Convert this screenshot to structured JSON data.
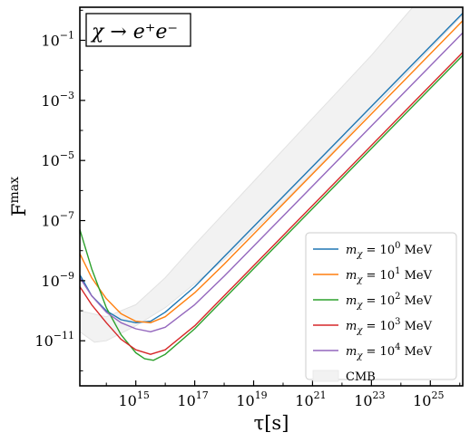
{
  "chart_data": {
    "type": "line",
    "title": "χ → e⁺e⁻",
    "xlabel": "τ[s]",
    "ylabel": "F_χ^max",
    "xscale": "log",
    "yscale": "log",
    "xlim_log10": [
      13.1,
      26.1
    ],
    "ylim_log10": [
      -12.5,
      0.1
    ],
    "x_ticks": [
      {
        "exp": 15,
        "label": "10^15"
      },
      {
        "exp": 17,
        "label": "10^17"
      },
      {
        "exp": 19,
        "label": "10^19"
      },
      {
        "exp": 21,
        "label": "10^21"
      },
      {
        "exp": 23,
        "label": "10^23"
      },
      {
        "exp": 25,
        "label": "10^25"
      }
    ],
    "y_ticks": [
      {
        "exp": -1,
        "label": "10^-1"
      },
      {
        "exp": -3,
        "label": "10^-3"
      },
      {
        "exp": -5,
        "label": "10^-5"
      },
      {
        "exp": -7,
        "label": "10^-7"
      },
      {
        "exp": -9,
        "label": "10^-9"
      },
      {
        "exp": -11,
        "label": "10^-11"
      }
    ],
    "legend_position": "lower-right",
    "series": [
      {
        "name": "m_χ = 10^0 MeV",
        "color": "#1f77b4",
        "points_log10": [
          [
            13.1,
            -8.8
          ],
          [
            13.5,
            -9.5
          ],
          [
            14.0,
            -10.0
          ],
          [
            14.5,
            -10.3
          ],
          [
            15.0,
            -10.4
          ],
          [
            15.5,
            -10.35
          ],
          [
            16.0,
            -10.05
          ],
          [
            17.0,
            -9.2
          ],
          [
            18.0,
            -8.2
          ],
          [
            20.0,
            -6.2
          ],
          [
            22.0,
            -4.2
          ],
          [
            24.0,
            -2.2
          ],
          [
            26.1,
            -0.1
          ]
        ]
      },
      {
        "name": "m_χ = 10^1 MeV",
        "color": "#ff7f0e",
        "points_log10": [
          [
            13.1,
            -8.1
          ],
          [
            13.5,
            -8.9
          ],
          [
            14.0,
            -9.6
          ],
          [
            14.5,
            -10.1
          ],
          [
            15.0,
            -10.35
          ],
          [
            15.5,
            -10.4
          ],
          [
            16.0,
            -10.2
          ],
          [
            17.0,
            -9.4
          ],
          [
            18.0,
            -8.45
          ],
          [
            20.0,
            -6.45
          ],
          [
            22.0,
            -4.45
          ],
          [
            24.0,
            -2.45
          ],
          [
            26.1,
            -0.35
          ]
        ]
      },
      {
        "name": "m_χ = 10^2 MeV",
        "color": "#2ca02c",
        "points_log10": [
          [
            13.1,
            -7.3
          ],
          [
            13.5,
            -8.6
          ],
          [
            14.0,
            -9.9
          ],
          [
            14.5,
            -10.8
          ],
          [
            15.0,
            -11.4
          ],
          [
            15.3,
            -11.6
          ],
          [
            15.6,
            -11.65
          ],
          [
            16.0,
            -11.45
          ],
          [
            17.0,
            -10.6
          ],
          [
            18.0,
            -9.6
          ],
          [
            20.0,
            -7.6
          ],
          [
            22.0,
            -5.6
          ],
          [
            24.0,
            -3.6
          ],
          [
            26.1,
            -1.5
          ]
        ]
      },
      {
        "name": "m_χ = 10^3 MeV",
        "color": "#d62728",
        "points_log10": [
          [
            13.1,
            -9.2
          ],
          [
            13.5,
            -9.8
          ],
          [
            14.0,
            -10.4
          ],
          [
            14.5,
            -10.95
          ],
          [
            15.0,
            -11.3
          ],
          [
            15.5,
            -11.45
          ],
          [
            16.0,
            -11.3
          ],
          [
            17.0,
            -10.5
          ],
          [
            18.0,
            -9.5
          ],
          [
            20.0,
            -7.5
          ],
          [
            22.0,
            -5.5
          ],
          [
            24.0,
            -3.5
          ],
          [
            26.1,
            -1.4
          ]
        ]
      },
      {
        "name": "m_χ = 10^4 MeV",
        "color": "#9467bd",
        "points_log10": [
          [
            13.1,
            -8.9
          ],
          [
            13.5,
            -9.5
          ],
          [
            14.0,
            -10.05
          ],
          [
            14.5,
            -10.4
          ],
          [
            15.0,
            -10.6
          ],
          [
            15.5,
            -10.7
          ],
          [
            16.0,
            -10.55
          ],
          [
            17.0,
            -9.8
          ],
          [
            18.0,
            -8.85
          ],
          [
            20.0,
            -6.85
          ],
          [
            22.0,
            -4.85
          ],
          [
            24.0,
            -2.85
          ],
          [
            26.1,
            -0.75
          ]
        ]
      }
    ],
    "band": {
      "name": "CMB",
      "color": "#f2f2f2",
      "upper_log10": [
        [
          13.1,
          -10.0
        ],
        [
          14.0,
          -10.2
        ],
        [
          15.0,
          -9.8
        ],
        [
          16.0,
          -8.9
        ],
        [
          17.0,
          -7.8
        ],
        [
          19.0,
          -5.7
        ],
        [
          21.0,
          -3.6
        ],
        [
          23.0,
          -1.5
        ],
        [
          24.4,
          0.1
        ]
      ],
      "lower_log10": [
        [
          24.4,
          0.1
        ],
        [
          26.1,
          0.1
        ],
        [
          26.1,
          -0.15
        ],
        [
          24.0,
          -2.3
        ],
        [
          22.0,
          -4.4
        ],
        [
          20.0,
          -6.4
        ],
        [
          18.0,
          -8.3
        ],
        [
          16.0,
          -9.9
        ],
        [
          15.0,
          -10.5
        ],
        [
          14.0,
          -11.0
        ],
        [
          13.6,
          -11.05
        ],
        [
          13.1,
          -10.7
        ]
      ]
    }
  }
}
